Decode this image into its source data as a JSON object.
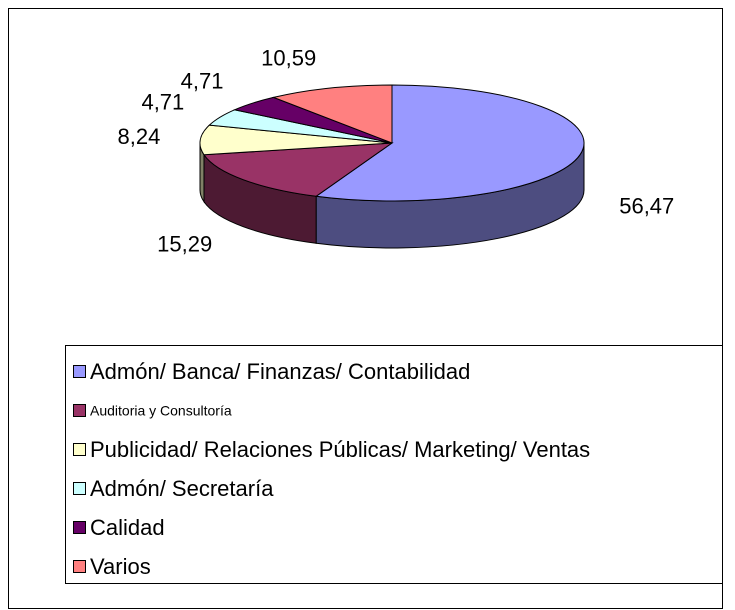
{
  "chart_data": {
    "type": "pie3d",
    "categories": [
      "Admón/ Banca/ Finanzas/ Contabilidad",
      "Auditoria y Consultoría",
      "Publicidad/ Relaciones Públicas/ Marketing/ Ventas",
      "Admón/ Secretaría",
      "Calidad",
      "Varios"
    ],
    "values": [
      56.47,
      15.29,
      8.24,
      4.71,
      4.71,
      10.59
    ],
    "value_labels": [
      "56,47",
      "15,29",
      "8,24",
      "4,71",
      "4,71",
      "10,59"
    ],
    "colors": [
      "#9999ff",
      "#993366",
      "#ffffcc",
      "#ccffff",
      "#660066",
      "#ff8080"
    ],
    "legend": "bottom"
  }
}
